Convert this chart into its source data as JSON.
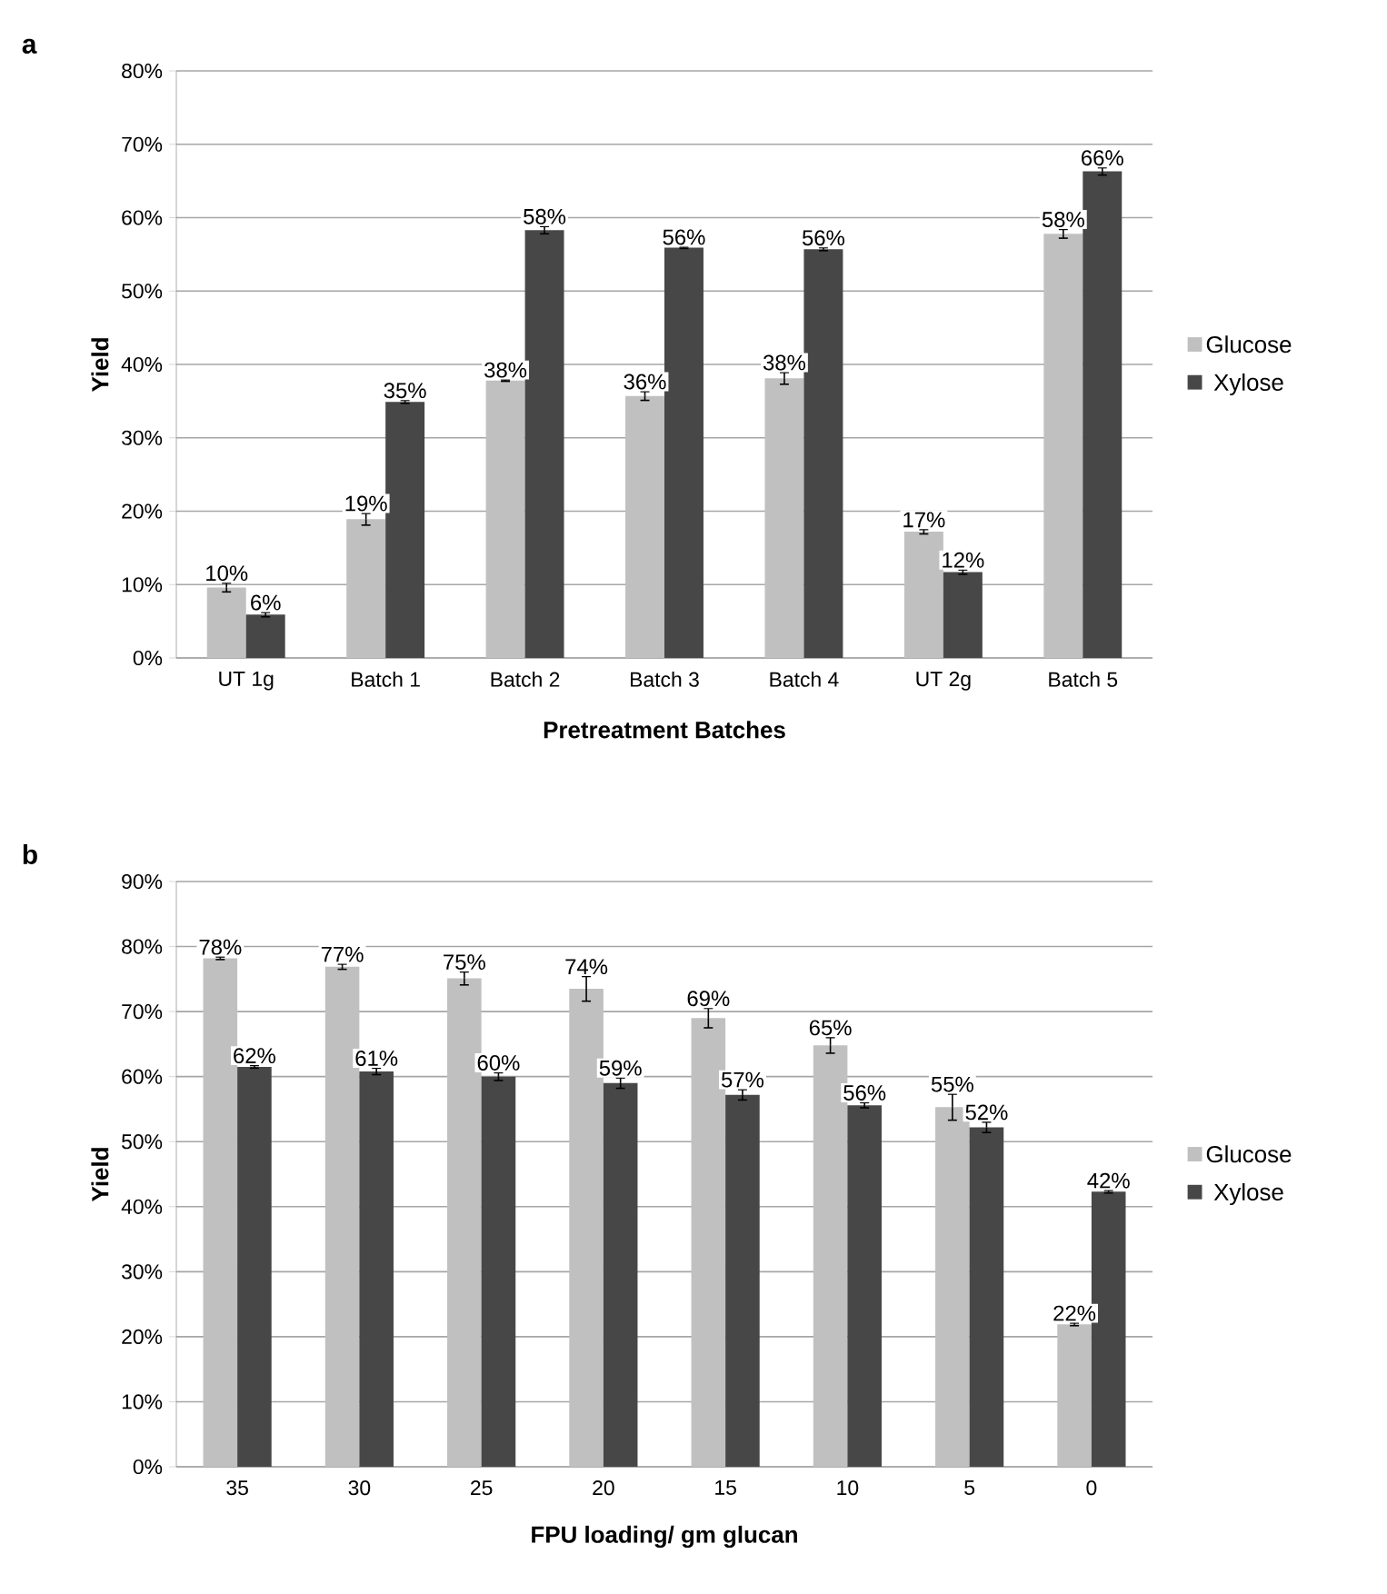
{
  "chart_data": [
    {
      "type": "bar",
      "title": "a",
      "xlabel": "Pretreatment Batches",
      "ylabel": "Yield",
      "categories": [
        "UT 1g",
        "Batch 1",
        "Batch 2",
        "Batch 3",
        "Batch 4",
        "UT 2g",
        "Batch 5"
      ],
      "series": [
        {
          "name": "Glucose",
          "color": "#c0c0c0",
          "values": [
            9.6,
            18.9,
            37.8,
            35.7,
            38.1,
            17.2,
            57.8
          ],
          "errors": [
            0.6,
            0.8,
            0.1,
            0.6,
            0.8,
            0.3,
            0.6
          ],
          "value_labels": [
            "10%",
            "19%",
            "38%",
            "36%",
            "38%",
            "17%",
            "58%"
          ]
        },
        {
          "name": "Xylose",
          "color": "#474747",
          "values": [
            5.9,
            34.9,
            58.3,
            55.9,
            55.7,
            11.7,
            66.3
          ],
          "errors": [
            0.3,
            0.2,
            0.5,
            0.1,
            0.2,
            0.3,
            0.5
          ],
          "value_labels": [
            "6%",
            "35%",
            "58%",
            "56%",
            "56%",
            "12%",
            "66%"
          ]
        }
      ],
      "ylim": [
        0,
        80
      ],
      "yticks": [
        {
          "value": 0,
          "label": "0%"
        },
        {
          "value": 10,
          "label": "10%"
        },
        {
          "value": 20,
          "label": "20%"
        },
        {
          "value": 30,
          "label": "30%"
        },
        {
          "value": 40,
          "label": "40%"
        },
        {
          "value": 50,
          "label": "50%"
        },
        {
          "value": 60,
          "label": "60%"
        },
        {
          "value": 70,
          "label": "70%"
        },
        {
          "value": 80,
          "label": "80%"
        }
      ],
      "grid": "y",
      "legend": "right"
    },
    {
      "type": "bar",
      "title": "b",
      "xlabel": "FPU loading/ gm glucan",
      "ylabel": "Yield",
      "categories": [
        "35",
        "30",
        "25",
        "20",
        "15",
        "10",
        "5",
        "0"
      ],
      "series": [
        {
          "name": "Glucose",
          "color": "#c0c0c0",
          "values": [
            78.2,
            76.9,
            75.1,
            73.5,
            69.0,
            64.8,
            55.3,
            21.9
          ],
          "errors": [
            0.2,
            0.4,
            1.0,
            1.9,
            1.5,
            1.2,
            2.0,
            0.2
          ],
          "value_labels": [
            "78%",
            "77%",
            "75%",
            "74%",
            "69%",
            "65%",
            "55%",
            "22%"
          ]
        },
        {
          "name": "Xylose",
          "color": "#474747",
          "values": [
            61.5,
            60.8,
            60.0,
            59.0,
            57.2,
            55.6,
            52.2,
            42.3
          ],
          "errors": [
            0.2,
            0.5,
            0.6,
            0.8,
            0.8,
            0.4,
            0.8,
            0.2
          ],
          "value_labels": [
            "62%",
            "61%",
            "60%",
            "59%",
            "57%",
            "56%",
            "52%",
            "42%"
          ]
        }
      ],
      "ylim": [
        0,
        90
      ],
      "yticks": [
        {
          "value": 0,
          "label": "0%"
        },
        {
          "value": 10,
          "label": "10%"
        },
        {
          "value": 20,
          "label": "20%"
        },
        {
          "value": 30,
          "label": "30%"
        },
        {
          "value": 40,
          "label": "40%"
        },
        {
          "value": 50,
          "label": "50%"
        },
        {
          "value": 60,
          "label": "60%"
        },
        {
          "value": 70,
          "label": "70%"
        },
        {
          "value": 80,
          "label": "80%"
        },
        {
          "value": 90,
          "label": "90%"
        }
      ],
      "grid": "y",
      "legend": "right"
    }
  ]
}
